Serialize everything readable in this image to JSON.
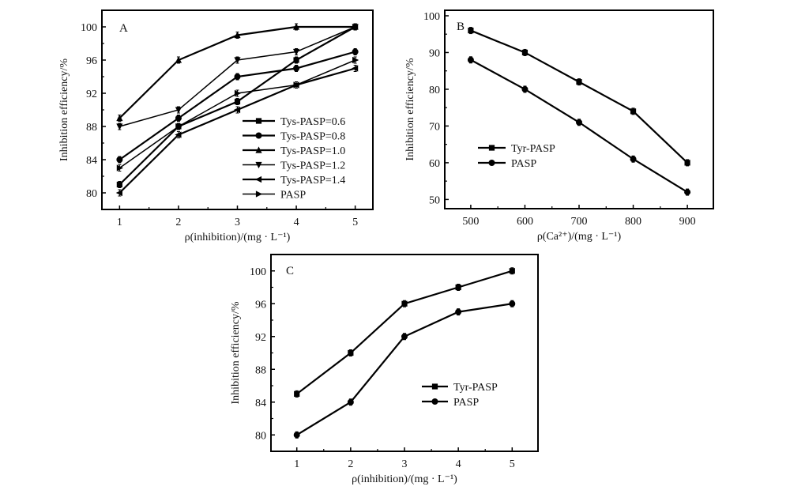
{
  "chart_data": [
    {
      "id": "A",
      "type": "line",
      "panel_label": "A",
      "title": "",
      "xlabel": "ρ(inhibition)/(mg · L⁻¹)",
      "ylabel": "Inhibition efficiency/%",
      "x": [
        1,
        2,
        3,
        4,
        5
      ],
      "xticks": [
        "1",
        "2",
        "3",
        "4",
        "5"
      ],
      "xlim": [
        0.7,
        5.3
      ],
      "yticks": [
        "80",
        "84",
        "88",
        "92",
        "96",
        "100"
      ],
      "ylim": [
        78,
        102
      ],
      "grid": false,
      "legend_position": "bottom-right",
      "series": [
        {
          "name": "Tys-PASP=0.6",
          "marker": "square",
          "values": [
            81,
            88,
            91,
            96,
            100
          ]
        },
        {
          "name": "Tys-PASP=0.8",
          "marker": "circle",
          "values": [
            84,
            89,
            94,
            95,
            97
          ]
        },
        {
          "name": "Tys-PASP=1.0",
          "marker": "triangle-up",
          "values": [
            89,
            96,
            99,
            100,
            100
          ]
        },
        {
          "name": "Tys-PASP=1.2",
          "marker": "triangle-down",
          "values": [
            88,
            90,
            96,
            97,
            100
          ]
        },
        {
          "name": "Tys-PASP=1.4",
          "marker": "triangle-left",
          "values": [
            80,
            87,
            90,
            93,
            95
          ]
        },
        {
          "name": "PASP",
          "marker": "triangle-right",
          "values": [
            83,
            88,
            92,
            93,
            96
          ]
        }
      ]
    },
    {
      "id": "B",
      "type": "line",
      "panel_label": "B",
      "title": "",
      "xlabel": "ρ(Ca²⁺)/(mg · L⁻¹)",
      "ylabel": "Inhibition efficiency/%",
      "x": [
        500,
        600,
        700,
        800,
        900
      ],
      "xticks": [
        "500",
        "600",
        "700",
        "800",
        "900"
      ],
      "xlim": [
        452,
        948
      ],
      "yticks": [
        "50",
        "60",
        "70",
        "80",
        "90",
        "100"
      ],
      "ylim": [
        47.5,
        101.5
      ],
      "grid": false,
      "legend_position": "left-lower",
      "series": [
        {
          "name": "Tyr-PASP",
          "marker": "square",
          "values": [
            96,
            90,
            82,
            74,
            60
          ]
        },
        {
          "name": "PASP",
          "marker": "circle",
          "values": [
            88,
            80,
            71,
            61,
            52
          ]
        }
      ]
    },
    {
      "id": "C",
      "type": "line",
      "panel_label": "C",
      "title": "",
      "xlabel": "ρ(inhibition)/(mg · L⁻¹)",
      "ylabel": "Inhibition efficiency/%",
      "x": [
        1,
        2,
        3,
        4,
        5
      ],
      "xticks": [
        "1",
        "2",
        "3",
        "4",
        "5"
      ],
      "xlim": [
        0.52,
        5.48
      ],
      "yticks": [
        "80",
        "84",
        "88",
        "92",
        "96",
        "100"
      ],
      "ylim": [
        78,
        102
      ],
      "grid": false,
      "legend_position": "right-lower",
      "series": [
        {
          "name": "Tyr-PASP",
          "marker": "square",
          "values": [
            85,
            90,
            96,
            98,
            100
          ]
        },
        {
          "name": "PASP",
          "marker": "circle",
          "values": [
            80,
            84,
            92,
            95,
            96
          ]
        }
      ]
    }
  ]
}
